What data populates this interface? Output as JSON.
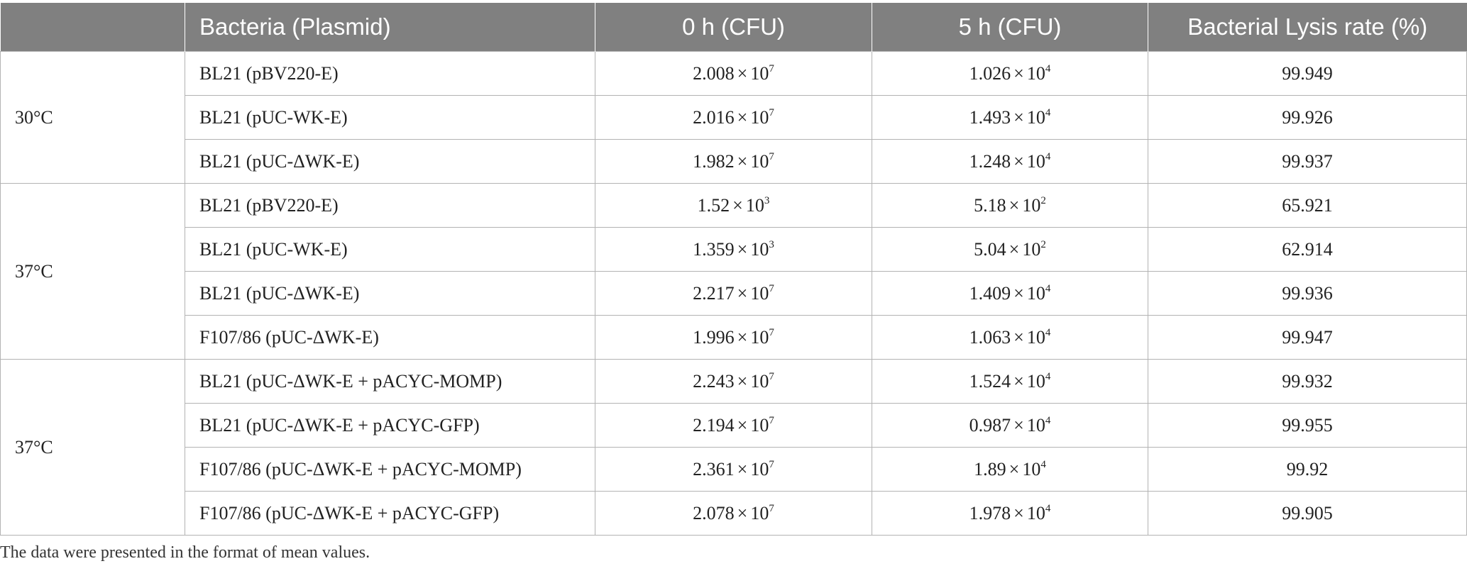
{
  "table": {
    "headers": [
      "",
      "Bacteria (Plasmid)",
      "0 h (CFU)",
      "5 h (CFU)",
      "Bacterial Lysis rate (%)"
    ],
    "groups": [
      {
        "temp": "30°C",
        "rows": [
          {
            "bacteria": "BL21 (pBV220-E)",
            "h0_m": "2.008",
            "h0_e": "7",
            "h5_m": "1.026",
            "h5_e": "4",
            "lysis": "99.949"
          },
          {
            "bacteria": "BL21 (pUC-WK-E)",
            "h0_m": "2.016",
            "h0_e": "7",
            "h5_m": "1.493",
            "h5_e": "4",
            "lysis": "99.926"
          },
          {
            "bacteria": "BL21 (pUC-ΔWK-E)",
            "h0_m": "1.982",
            "h0_e": "7",
            "h5_m": "1.248",
            "h5_e": "4",
            "lysis": "99.937"
          }
        ]
      },
      {
        "temp": "37°C",
        "rows": [
          {
            "bacteria": "BL21 (pBV220-E)",
            "h0_m": "1.52",
            "h0_e": "3",
            "h5_m": "5.18",
            "h5_e": "2",
            "lysis": "65.921"
          },
          {
            "bacteria": "BL21 (pUC-WK-E)",
            "h0_m": "1.359",
            "h0_e": "3",
            "h5_m": "5.04",
            "h5_e": "2",
            "lysis": "62.914"
          },
          {
            "bacteria": "BL21 (pUC-ΔWK-E)",
            "h0_m": "2.217",
            "h0_e": "7",
            "h5_m": "1.409",
            "h5_e": "4",
            "lysis": "99.936"
          },
          {
            "bacteria": "F107/86 (pUC-ΔWK-E)",
            "h0_m": "1.996",
            "h0_e": "7",
            "h5_m": "1.063",
            "h5_e": "4",
            "lysis": "99.947"
          }
        ]
      },
      {
        "temp": "37°C",
        "rows": [
          {
            "bacteria": "BL21 (pUC-ΔWK-E + pACYC-MOMP)",
            "h0_m": "2.243",
            "h0_e": "7",
            "h5_m": "1.524",
            "h5_e": "4",
            "lysis": "99.932"
          },
          {
            "bacteria": "BL21 (pUC-ΔWK-E + pACYC-GFP)",
            "h0_m": "2.194",
            "h0_e": "7",
            "h5_m": "0.987",
            "h5_e": "4",
            "lysis": "99.955"
          },
          {
            "bacteria": "F107/86 (pUC-ΔWK-E + pACYC-MOMP)",
            "h0_m": "2.361",
            "h0_e": "7",
            "h5_m": "1.89",
            "h5_e": "4",
            "lysis": "99.92"
          },
          {
            "bacteria": "F107/86 (pUC-ΔWK-E + pACYC-GFP)",
            "h0_m": "2.078",
            "h0_e": "7",
            "h5_m": "1.978",
            "h5_e": "4",
            "lysis": "99.905"
          }
        ]
      }
    ],
    "times_sign": "×",
    "base": "10"
  },
  "footnote": "The data were presented in the format of mean values."
}
